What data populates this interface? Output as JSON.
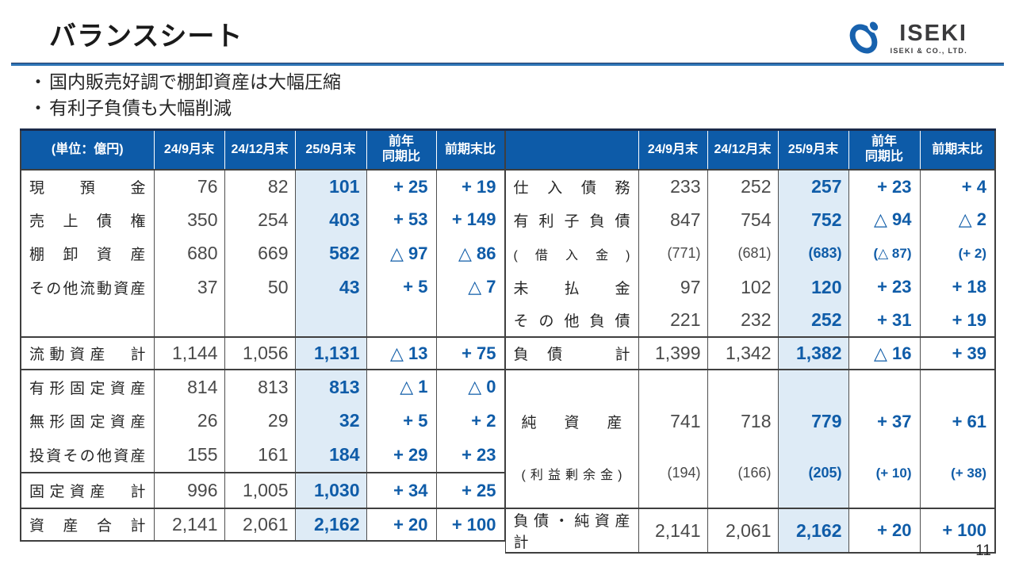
{
  "slide": {
    "title": "バランスシート",
    "page_number": "11"
  },
  "bullets": [
    {
      "marker": "・",
      "text": "国内販売好調で棚卸資産は大幅圧縮"
    },
    {
      "marker": "・",
      "text": "有利子負債も大幅削減"
    }
  ],
  "logo": {
    "brand": "ISEKI",
    "company": "ISEKI & CO., LTD."
  },
  "table": {
    "unit_label": "(単位：億円)",
    "period_columns": [
      "24/9月末",
      "24/12月末",
      "25/9月末",
      "前年\n同期比",
      "前期末比"
    ],
    "left": {
      "rows": [
        {
          "label": "現預金",
          "type": "item",
          "cells": [
            "76",
            "82",
            "101",
            "+ 25",
            "+ 19"
          ]
        },
        {
          "label": "売上債権",
          "type": "item",
          "cells": [
            "350",
            "254",
            "403",
            "+ 53",
            "+ 149"
          ]
        },
        {
          "label": "棚卸資産",
          "type": "item",
          "cells": [
            "680",
            "669",
            "582",
            "△ 97",
            "△ 86"
          ]
        },
        {
          "label": "その他流動資産",
          "type": "item",
          "cells": [
            "37",
            "50",
            "43",
            "+ 5",
            "△ 7"
          ]
        },
        {
          "label": "",
          "type": "spacer",
          "cells": [
            "",
            "",
            "",
            "",
            ""
          ]
        },
        {
          "label": "流動資産　計",
          "type": "subtotal",
          "cells": [
            "1,144",
            "1,056",
            "1,131",
            "△ 13",
            "+ 75"
          ]
        },
        {
          "label": "有形固定資産",
          "type": "item",
          "cells": [
            "814",
            "813",
            "813",
            "△ 1",
            "△ 0"
          ]
        },
        {
          "label": "無形固定資産",
          "type": "item",
          "cells": [
            "26",
            "29",
            "32",
            "+ 5",
            "+ 2"
          ]
        },
        {
          "label": "投資その他資産",
          "type": "item",
          "cells": [
            "155",
            "161",
            "184",
            "+ 29",
            "+ 23"
          ]
        },
        {
          "label": "固定資産　計",
          "type": "subtotal",
          "cells": [
            "996",
            "1,005",
            "1,030",
            "+ 34",
            "+ 25"
          ]
        },
        {
          "label": "資産合計",
          "type": "total",
          "cells": [
            "2,141",
            "2,061",
            "2,162",
            "+ 20",
            "+ 100"
          ]
        }
      ]
    },
    "right": {
      "rows": [
        {
          "label": "仕入債務",
          "type": "item",
          "cells": [
            "233",
            "252",
            "257",
            "+ 23",
            "+ 4"
          ]
        },
        {
          "label": "有利子負債",
          "type": "item",
          "cells": [
            "847",
            "754",
            "752",
            "△ 94",
            "△ 2"
          ]
        },
        {
          "label": "(借入金)",
          "type": "subitem",
          "cells": [
            "(771)",
            "(681)",
            "(683)",
            "(△ 87)",
            "(+ 2)"
          ]
        },
        {
          "label": "未払金",
          "type": "item",
          "cells": [
            "97",
            "102",
            "120",
            "+ 23",
            "+ 18"
          ]
        },
        {
          "label": "その他負債",
          "type": "item",
          "cells": [
            "221",
            "232",
            "252",
            "+ 31",
            "+ 19"
          ]
        },
        {
          "label": "負債　計",
          "type": "subtotal",
          "cells": [
            "1,399",
            "1,342",
            "1,382",
            "△ 16",
            "+ 39"
          ]
        },
        {
          "label": "純資産",
          "type": "tall-main",
          "cells": [
            "741",
            "718",
            "779",
            "+ 37",
            "+ 61"
          ]
        },
        {
          "label": "(利益剰余金)",
          "type": "tall-sub",
          "cells": [
            "(194)",
            "(166)",
            "(205)",
            "(+ 10)",
            "(+ 38)"
          ]
        },
        {
          "label": "負債・純資産　計",
          "type": "total",
          "cells": [
            "2,141",
            "2,061",
            "2,162",
            "+ 20",
            "+ 100"
          ]
        }
      ]
    }
  },
  "colors": {
    "header_bg": "#0D5BA8",
    "highlight_bg": "#DEEBF6",
    "accent_text": "#0F5CA8",
    "rule_blue": "#2E74B5"
  }
}
